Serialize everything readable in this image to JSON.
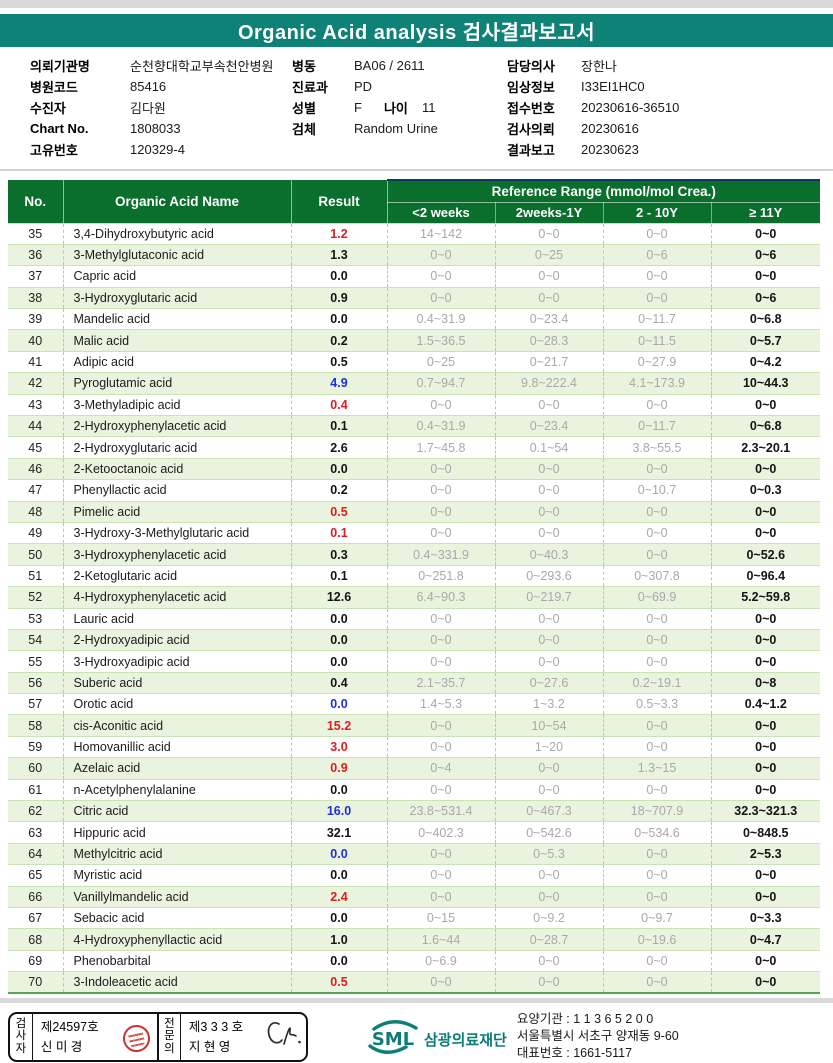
{
  "title": "Organic Acid analysis 검사결과보고서",
  "colors": {
    "title_bar_teal": "#0e8276",
    "table_header_green": "#0a6e2d",
    "row_alt_green": "#e9f3de",
    "result_high_red": "#e01d1d",
    "result_low_blue": "#2030d8",
    "brand_teal": "#0c7d76",
    "seal_red": "#cf3030"
  },
  "patient_info": {
    "col1": [
      {
        "label": "의뢰기관명",
        "value": "순천향대학교부속천안병원"
      },
      {
        "label": "병원코드",
        "value": "85416"
      },
      {
        "label": "수진자",
        "value": "김다원"
      },
      {
        "label": "Chart No.",
        "value": "1808033"
      },
      {
        "label": "고유번호",
        "value": "120329-4"
      }
    ],
    "col2": [
      {
        "label": "병동",
        "value": "BA06 / 2611"
      },
      {
        "label": "진료과",
        "value": "PD"
      },
      {
        "label": "성별",
        "value": "F",
        "label2": "나이",
        "value2": "11"
      },
      {
        "label": "검체",
        "value": "Random Urine"
      }
    ],
    "col3": [
      {
        "label": "담당의사",
        "value": "장한나"
      },
      {
        "label": "임상정보",
        "value": "I33EI1HC0"
      },
      {
        "label": "접수번호",
        "value": "20230616-36510"
      },
      {
        "label": "검사의뢰",
        "value": "20230616"
      },
      {
        "label": "결과보고",
        "value": "20230623"
      }
    ]
  },
  "table": {
    "header": {
      "no": "No.",
      "name": "Organic Acid Name",
      "result": "Result",
      "ref_group": "Reference Range (mmol/mol Crea.)",
      "sub1": "<2 weeks",
      "sub2": "2weeks-1Y",
      "sub3": "2 - 10Y",
      "sub4": "≥ 11Y"
    },
    "rows": [
      {
        "no": "35",
        "name": "3,4-Dihydroxybutyric acid",
        "result": "1.2",
        "flag": "red",
        "ranges": [
          "14~142",
          "0~0",
          "0~0",
          "0~0"
        ]
      },
      {
        "no": "36",
        "name": "3-Methylglutaconic acid",
        "result": "1.3",
        "flag": "normal",
        "ranges": [
          "0~0",
          "0~25",
          "0~6",
          "0~6"
        ]
      },
      {
        "no": "37",
        "name": "Capric acid",
        "result": "0.0",
        "flag": "normal",
        "ranges": [
          "0~0",
          "0~0",
          "0~0",
          "0~0"
        ]
      },
      {
        "no": "38",
        "name": "3-Hydroxyglutaric acid",
        "result": "0.9",
        "flag": "normal",
        "ranges": [
          "0~0",
          "0~0",
          "0~0",
          "0~6"
        ]
      },
      {
        "no": "39",
        "name": "Mandelic acid",
        "result": "0.0",
        "flag": "normal",
        "ranges": [
          "0.4~31.9",
          "0~23.4",
          "0~11.7",
          "0~6.8"
        ]
      },
      {
        "no": "40",
        "name": "Malic acid",
        "result": "0.2",
        "flag": "normal",
        "ranges": [
          "1.5~36.5",
          "0~28.3",
          "0~11.5",
          "0~5.7"
        ]
      },
      {
        "no": "41",
        "name": "Adipic acid",
        "result": "0.5",
        "flag": "normal",
        "ranges": [
          "0~25",
          "0~21.7",
          "0~27.9",
          "0~4.2"
        ]
      },
      {
        "no": "42",
        "name": "Pyroglutamic acid",
        "result": "4.9",
        "flag": "blue",
        "ranges": [
          "0.7~94.7",
          "9.8~222.4",
          "4.1~173.9",
          "10~44.3"
        ]
      },
      {
        "no": "43",
        "name": "3-Methyladipic acid",
        "result": "0.4",
        "flag": "red",
        "ranges": [
          "0~0",
          "0~0",
          "0~0",
          "0~0"
        ]
      },
      {
        "no": "44",
        "name": "2-Hydroxyphenylacetic acid",
        "result": "0.1",
        "flag": "normal",
        "ranges": [
          "0.4~31.9",
          "0~23.4",
          "0~11.7",
          "0~6.8"
        ]
      },
      {
        "no": "45",
        "name": "2-Hydroxyglutaric acid",
        "result": "2.6",
        "flag": "normal",
        "ranges": [
          "1.7~45.8",
          "0.1~54",
          "3.8~55.5",
          "2.3~20.1"
        ]
      },
      {
        "no": "46",
        "name": "2-Ketooctanoic acid",
        "result": "0.0",
        "flag": "normal",
        "ranges": [
          "0~0",
          "0~0",
          "0~0",
          "0~0"
        ]
      },
      {
        "no": "47",
        "name": "Phenyllactic acid",
        "result": "0.2",
        "flag": "normal",
        "ranges": [
          "0~0",
          "0~0",
          "0~10.7",
          "0~0.3"
        ]
      },
      {
        "no": "48",
        "name": "Pimelic acid",
        "result": "0.5",
        "flag": "red",
        "ranges": [
          "0~0",
          "0~0",
          "0~0",
          "0~0"
        ]
      },
      {
        "no": "49",
        "name": "3-Hydroxy-3-Methylglutaric acid",
        "result": "0.1",
        "flag": "red",
        "ranges": [
          "0~0",
          "0~0",
          "0~0",
          "0~0"
        ]
      },
      {
        "no": "50",
        "name": "3-Hydroxyphenylacetic acid",
        "result": "0.3",
        "flag": "normal",
        "ranges": [
          "0.4~331.9",
          "0~40.3",
          "0~0",
          "0~52.6"
        ]
      },
      {
        "no": "51",
        "name": "2-Ketoglutaric acid",
        "result": "0.1",
        "flag": "normal",
        "ranges": [
          "0~251.8",
          "0~293.6",
          "0~307.8",
          "0~96.4"
        ]
      },
      {
        "no": "52",
        "name": "4-Hydroxyphenylacetic acid",
        "result": "12.6",
        "flag": "normal",
        "ranges": [
          "6.4~90.3",
          "0~219.7",
          "0~69.9",
          "5.2~59.8"
        ]
      },
      {
        "no": "53",
        "name": "Lauric acid",
        "result": "0.0",
        "flag": "normal",
        "ranges": [
          "0~0",
          "0~0",
          "0~0",
          "0~0"
        ]
      },
      {
        "no": "54",
        "name": "2-Hydroxyadipic acid",
        "result": "0.0",
        "flag": "normal",
        "ranges": [
          "0~0",
          "0~0",
          "0~0",
          "0~0"
        ]
      },
      {
        "no": "55",
        "name": "3-Hydroxyadipic acid",
        "result": "0.0",
        "flag": "normal",
        "ranges": [
          "0~0",
          "0~0",
          "0~0",
          "0~0"
        ]
      },
      {
        "no": "56",
        "name": "Suberic acid",
        "result": "0.4",
        "flag": "normal",
        "ranges": [
          "2.1~35.7",
          "0~27.6",
          "0.2~19.1",
          "0~8"
        ]
      },
      {
        "no": "57",
        "name": "Orotic acid",
        "result": "0.0",
        "flag": "blue",
        "ranges": [
          "1.4~5.3",
          "1~3.2",
          "0.5~3.3",
          "0.4~1.2"
        ]
      },
      {
        "no": "58",
        "name": "cis-Aconitic acid",
        "result": "15.2",
        "flag": "red",
        "ranges": [
          "0~0",
          "10~54",
          "0~0",
          "0~0"
        ]
      },
      {
        "no": "59",
        "name": "Homovanillic acid",
        "result": "3.0",
        "flag": "red",
        "ranges": [
          "0~0",
          "1~20",
          "0~0",
          "0~0"
        ]
      },
      {
        "no": "60",
        "name": "Azelaic acid",
        "result": "0.9",
        "flag": "red",
        "ranges": [
          "0~4",
          "0~0",
          "1.3~15",
          "0~0"
        ]
      },
      {
        "no": "61",
        "name": "n-Acetylphenylalanine",
        "result": "0.0",
        "flag": "normal",
        "ranges": [
          "0~0",
          "0~0",
          "0~0",
          "0~0"
        ]
      },
      {
        "no": "62",
        "name": "Citric acid",
        "result": "16.0",
        "flag": "blue",
        "ranges": [
          "23.8~531.4",
          "0~467.3",
          "18~707.9",
          "32.3~321.3"
        ]
      },
      {
        "no": "63",
        "name": "Hippuric acid",
        "result": "32.1",
        "flag": "normal",
        "ranges": [
          "0~402.3",
          "0~542.6",
          "0~534.6",
          "0~848.5"
        ]
      },
      {
        "no": "64",
        "name": "Methylcitric acid",
        "result": "0.0",
        "flag": "blue",
        "ranges": [
          "0~0",
          "0~5.3",
          "0~0",
          "2~5.3"
        ]
      },
      {
        "no": "65",
        "name": "Myristic acid",
        "result": "0.0",
        "flag": "normal",
        "ranges": [
          "0~0",
          "0~0",
          "0~0",
          "0~0"
        ]
      },
      {
        "no": "66",
        "name": "Vanillylmandelic acid",
        "result": "2.4",
        "flag": "red",
        "ranges": [
          "0~0",
          "0~0",
          "0~0",
          "0~0"
        ]
      },
      {
        "no": "67",
        "name": "Sebacic acid",
        "result": "0.0",
        "flag": "normal",
        "ranges": [
          "0~15",
          "0~9.2",
          "0~9.7",
          "0~3.3"
        ]
      },
      {
        "no": "68",
        "name": "4-Hydroxyphenyllactic acid",
        "result": "1.0",
        "flag": "normal",
        "ranges": [
          "1.6~44",
          "0~28.7",
          "0~19.6",
          "0~4.7"
        ]
      },
      {
        "no": "69",
        "name": "Phenobarbital",
        "result": "0.0",
        "flag": "normal",
        "ranges": [
          "0~6.9",
          "0~0",
          "0~0",
          "0~0"
        ]
      },
      {
        "no": "70",
        "name": "3-Indoleacetic acid",
        "result": "0.5",
        "flag": "red",
        "ranges": [
          "0~0",
          "0~0",
          "0~0",
          "0~0"
        ]
      }
    ]
  },
  "footer": {
    "examiner_box": {
      "role1": "검사자",
      "cert1": "제24597호",
      "name1": "신 미 경",
      "role2": "전문의",
      "cert2": "제3 3 3 호",
      "name2": "지 현 영"
    },
    "icons": {
      "stamp": "red-seal-stamp",
      "signature": "handwritten-signature",
      "logo": "sml-arc-logo"
    },
    "org": {
      "logo_text": "SML",
      "org_name": "삼광의료재단",
      "line1": "요양기관 : 1 1 3 6 5 2 0 0",
      "line2": "서울특별시 서초구 양재동 9-60",
      "line3": "대표번호 : 1661-5117"
    }
  }
}
